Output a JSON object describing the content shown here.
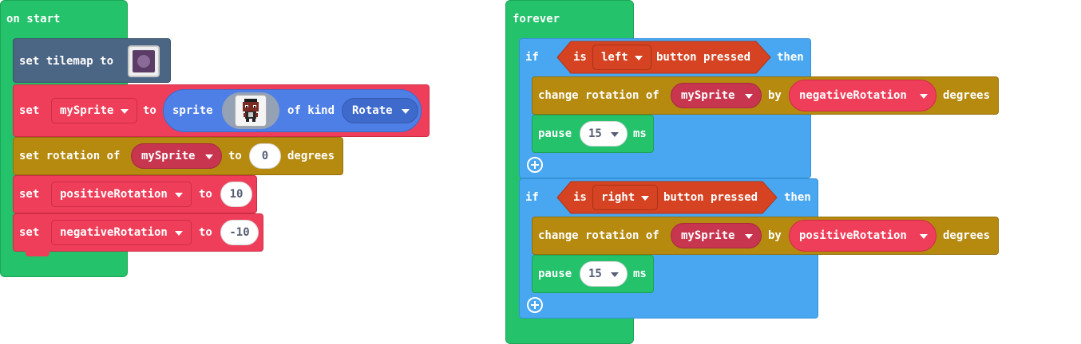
{
  "on_start": {
    "label": "on start",
    "set_tilemap": {
      "label": "set tilemap to"
    },
    "set_sprite": {
      "set_label": "set",
      "var": "mySprite",
      "to_label": "to",
      "sprite_label": "sprite",
      "of_kind_label": "of kind",
      "kind": "Rotate"
    },
    "set_rotation": {
      "label": "set rotation of",
      "var": "mySprite",
      "to_label": "to",
      "value": "0",
      "unit": "degrees"
    },
    "set_positive": {
      "set_label": "set",
      "var": "positiveRotation",
      "to_label": "to",
      "value": "10"
    },
    "set_negative": {
      "set_label": "set",
      "var": "negativeRotation",
      "to_label": "to",
      "value": "-10"
    }
  },
  "forever": {
    "label": "forever",
    "if_left": {
      "if_label": "if",
      "is_label": "is",
      "button": "left",
      "pressed_label": "button pressed",
      "then_label": "then",
      "change": {
        "label": "change rotation of",
        "var": "mySprite",
        "by_label": "by",
        "amount": "negativeRotation",
        "unit": "degrees"
      },
      "pause": {
        "label": "pause",
        "value": "15",
        "unit": "ms"
      }
    },
    "if_right": {
      "if_label": "if",
      "is_label": "is",
      "button": "right",
      "pressed_label": "button pressed",
      "then_label": "then",
      "change": {
        "label": "change rotation of",
        "var": "mySprite",
        "by_label": "by",
        "amount": "positiveRotation",
        "unit": "degrees"
      },
      "pause": {
        "label": "pause",
        "value": "15",
        "unit": "ms"
      }
    }
  },
  "colors": {
    "events": "#23C26B",
    "scene": "#4B6584",
    "variables": "#EF3E5A",
    "sprites": "#B58A0F",
    "logic": "#48A7F0",
    "controller": "#D54322"
  }
}
